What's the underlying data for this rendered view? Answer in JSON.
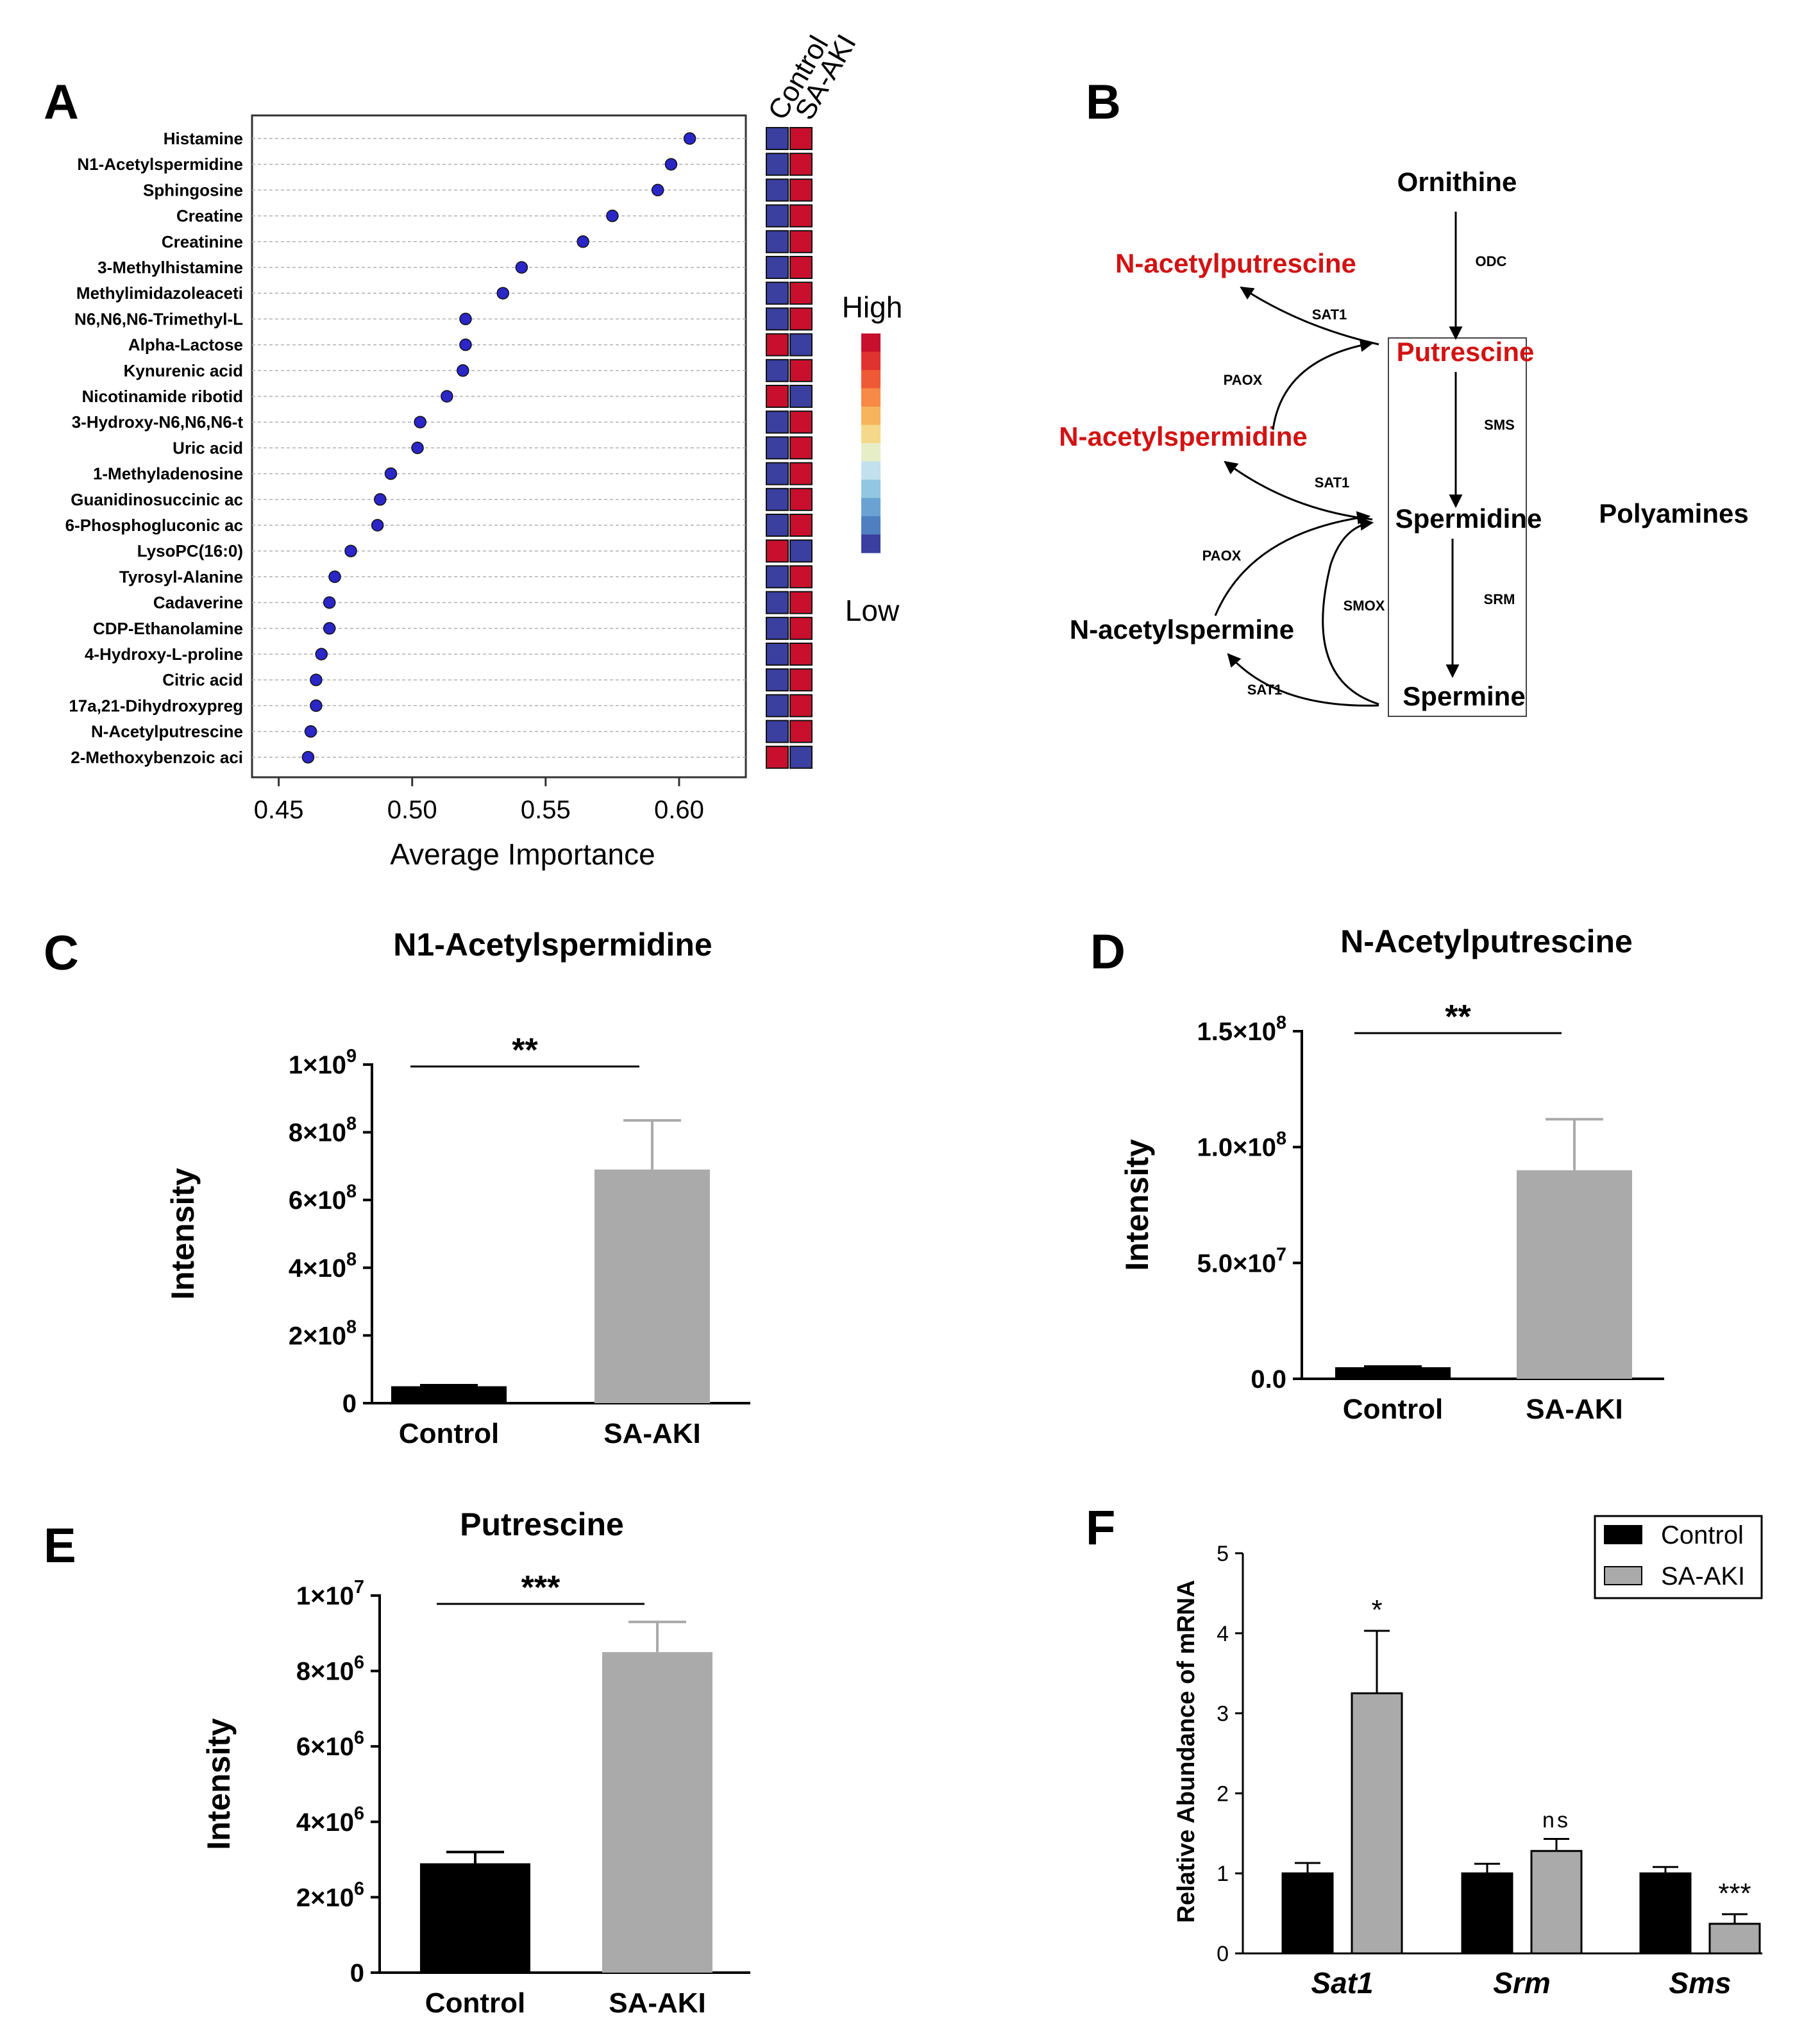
{
  "colors": {
    "dot": "#2a26c8",
    "control_bar": "#000000",
    "saaki_bar": "#aaaaaa",
    "heat_low": "#3a3fa0",
    "heat_high": "#c8102e",
    "red_text": "#d21313",
    "grid": "#b0b0b0"
  },
  "panels": {
    "A": {
      "letter": "A"
    },
    "B": {
      "letter": "B"
    },
    "C": {
      "letter": "C"
    },
    "D": {
      "letter": "D"
    },
    "E": {
      "letter": "E"
    },
    "F": {
      "letter": "F"
    }
  },
  "pathway": {
    "ornithine": "Ornithine",
    "putrescine": "Putrescine",
    "spermidine": "Spermidine",
    "spermine": "Spermine",
    "n_acetylputrescine": "N-acetylputrescine",
    "n_acetylspermidine": "N-acetylspermidine",
    "n_acetylspermine": "N-acetylspermine",
    "polyamines": "Polyamines",
    "enzymes": {
      "odc": "ODC",
      "sms": "SMS",
      "srm": "SRM",
      "smox": "SMOX",
      "sat1_a": "SAT1",
      "sat1_b": "SAT1",
      "sat1_c": "SAT1",
      "paox_a": "PAOX",
      "paox_b": "PAOX"
    }
  },
  "chart_data": [
    {
      "type": "scatter",
      "panel": "A",
      "xlabel": "Average Importance",
      "xlim": [
        0.44,
        0.625
      ],
      "xticks": [
        "0.45",
        "0.50",
        "0.55",
        "0.60"
      ],
      "xtick_values": [
        0.45,
        0.5,
        0.55,
        0.6
      ],
      "heatmap_columns": [
        "Control",
        "SA-AKI"
      ],
      "legend_high": "High",
      "legend_low": "Low",
      "features": [
        {
          "name": "Histamine",
          "value": 0.604,
          "heat": [
            "low",
            "high"
          ]
        },
        {
          "name": "N1-Acetylspermidine",
          "value": 0.597,
          "heat": [
            "low",
            "high"
          ]
        },
        {
          "name": "Sphingosine",
          "value": 0.592,
          "heat": [
            "low",
            "high"
          ]
        },
        {
          "name": "Creatine",
          "value": 0.575,
          "heat": [
            "low",
            "high"
          ]
        },
        {
          "name": "Creatinine",
          "value": 0.564,
          "heat": [
            "low",
            "high"
          ]
        },
        {
          "name": "3-Methylhistamine",
          "value": 0.541,
          "heat": [
            "low",
            "high"
          ]
        },
        {
          "name": "Methylimidazoleaceti",
          "value": 0.534,
          "heat": [
            "low",
            "high"
          ]
        },
        {
          "name": "N6,N6,N6-Trimethyl-L",
          "value": 0.52,
          "heat": [
            "low",
            "high"
          ]
        },
        {
          "name": "Alpha-Lactose",
          "value": 0.52,
          "heat": [
            "high",
            "low"
          ]
        },
        {
          "name": "Kynurenic acid",
          "value": 0.519,
          "heat": [
            "low",
            "high"
          ]
        },
        {
          "name": "Nicotinamide ribotid",
          "value": 0.513,
          "heat": [
            "high",
            "low"
          ]
        },
        {
          "name": "3-Hydroxy-N6,N6,N6-t",
          "value": 0.503,
          "heat": [
            "low",
            "high"
          ]
        },
        {
          "name": "Uric acid",
          "value": 0.502,
          "heat": [
            "low",
            "high"
          ]
        },
        {
          "name": "1-Methyladenosine",
          "value": 0.492,
          "heat": [
            "low",
            "high"
          ]
        },
        {
          "name": "Guanidinosuccinic ac",
          "value": 0.488,
          "heat": [
            "low",
            "high"
          ]
        },
        {
          "name": "6-Phosphogluconic ac",
          "value": 0.487,
          "heat": [
            "low",
            "high"
          ]
        },
        {
          "name": "LysoPC(16:0)",
          "value": 0.477,
          "heat": [
            "high",
            "low"
          ]
        },
        {
          "name": "Tyrosyl-Alanine",
          "value": 0.471,
          "heat": [
            "low",
            "high"
          ]
        },
        {
          "name": "Cadaverine",
          "value": 0.469,
          "heat": [
            "low",
            "high"
          ]
        },
        {
          "name": "CDP-Ethanolamine",
          "value": 0.469,
          "heat": [
            "low",
            "high"
          ]
        },
        {
          "name": "4-Hydroxy-L-proline",
          "value": 0.466,
          "heat": [
            "low",
            "high"
          ]
        },
        {
          "name": "Citric acid",
          "value": 0.464,
          "heat": [
            "low",
            "high"
          ]
        },
        {
          "name": "17a,21-Dihydroxypreg",
          "value": 0.464,
          "heat": [
            "low",
            "high"
          ]
        },
        {
          "name": "N-Acetylputrescine",
          "value": 0.462,
          "heat": [
            "low",
            "high"
          ]
        },
        {
          "name": "2-Methoxybenzoic aci",
          "value": 0.461,
          "heat": [
            "high",
            "low"
          ]
        }
      ]
    },
    {
      "type": "bar",
      "panel": "C",
      "title": "N1-Acetylspermidine",
      "ylabel": "Intensity",
      "categories": [
        "Control",
        "SA-AKI"
      ],
      "values": [
        50000000,
        690000000
      ],
      "errors": [
        3000000,
        145000000
      ],
      "ylim": [
        0,
        1000000000
      ],
      "yticks": [
        {
          "value": 0,
          "base": "0",
          "exp": ""
        },
        {
          "value": 200000000,
          "base": "2×10",
          "exp": "8"
        },
        {
          "value": 400000000,
          "base": "4×10",
          "exp": "8"
        },
        {
          "value": 600000000,
          "base": "6×10",
          "exp": "8"
        },
        {
          "value": 800000000,
          "base": "8×10",
          "exp": "8"
        },
        {
          "value": 1000000000,
          "base": "1×10",
          "exp": "9"
        }
      ],
      "significance": "**"
    },
    {
      "type": "bar",
      "panel": "D",
      "title": "N-Acetylputrescine",
      "ylabel": "Intensity",
      "categories": [
        "Control",
        "SA-AKI"
      ],
      "values": [
        5000000,
        90000000
      ],
      "errors": [
        300000,
        22000000
      ],
      "ylim": [
        0,
        150000000
      ],
      "yticks": [
        {
          "value": 0,
          "base": "0.0",
          "exp": ""
        },
        {
          "value": 50000000,
          "base": "5.0×10",
          "exp": "7"
        },
        {
          "value": 100000000,
          "base": "1.0×10",
          "exp": "8"
        },
        {
          "value": 150000000,
          "base": "1.5×10",
          "exp": "8"
        }
      ],
      "significance": "**"
    },
    {
      "type": "bar",
      "panel": "E",
      "title": "Putrescine",
      "ylabel": "Intensity",
      "categories": [
        "Control",
        "SA-AKI"
      ],
      "values": [
        2900000,
        8500000
      ],
      "errors": [
        300000,
        800000
      ],
      "ylim": [
        0,
        10000000
      ],
      "yticks": [
        {
          "value": 0,
          "base": "0",
          "exp": ""
        },
        {
          "value": 2000000,
          "base": "2×10",
          "exp": "6"
        },
        {
          "value": 4000000,
          "base": "4×10",
          "exp": "6"
        },
        {
          "value": 6000000,
          "base": "6×10",
          "exp": "6"
        },
        {
          "value": 8000000,
          "base": "8×10",
          "exp": "6"
        },
        {
          "value": 10000000,
          "base": "1×10",
          "exp": "7"
        }
      ],
      "significance": "***"
    },
    {
      "type": "bar",
      "panel": "F",
      "ylabel": "Relative Abundance of mRNA",
      "categories": [
        "Sat1",
        "Srm",
        "Sms"
      ],
      "ylim": [
        0,
        5
      ],
      "yticks": [
        "0",
        "1",
        "2",
        "3",
        "4",
        "5"
      ],
      "series": [
        {
          "name": "Control",
          "values": [
            1.0,
            1.0,
            1.0
          ],
          "errors": [
            0.13,
            0.12,
            0.08
          ]
        },
        {
          "name": "SA-AKI",
          "values": [
            3.25,
            1.28,
            0.37
          ],
          "errors": [
            0.78,
            0.15,
            0.12
          ]
        }
      ],
      "significance": [
        "*",
        "ns",
        "***"
      ]
    }
  ]
}
